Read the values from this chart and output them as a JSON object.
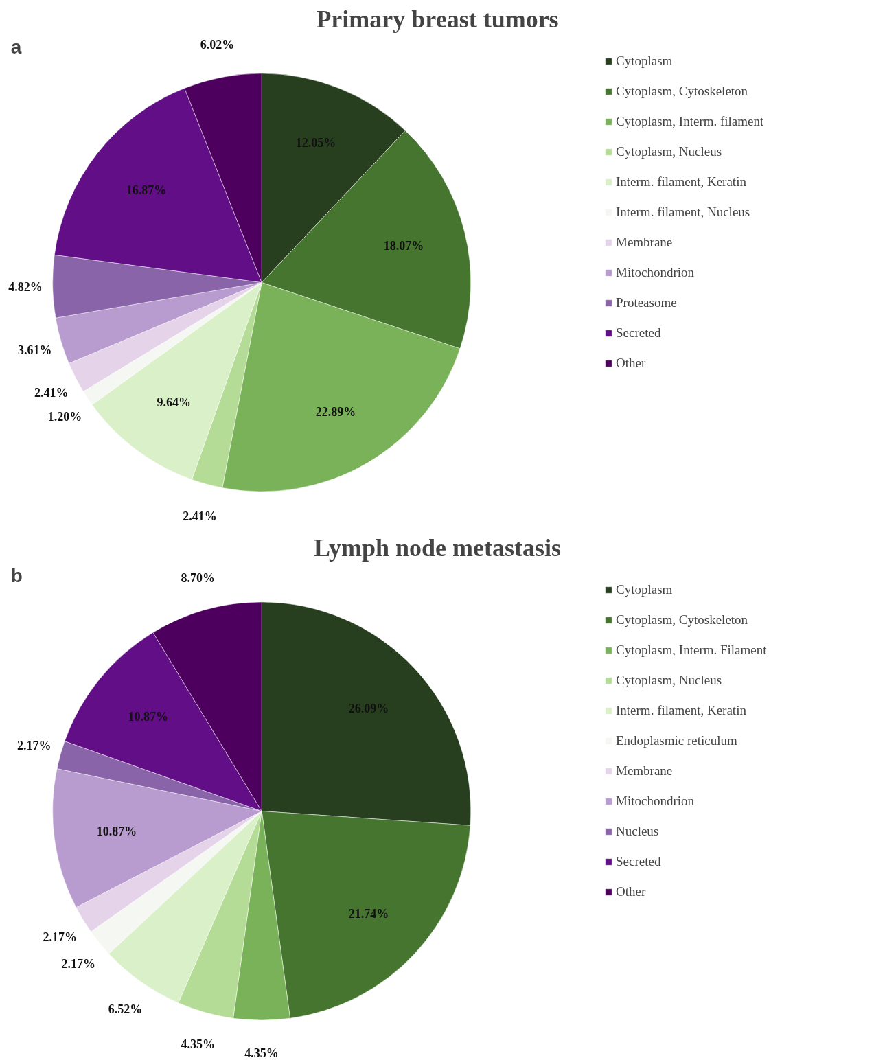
{
  "chart_data": [
    {
      "type": "pie",
      "title": "Primary breast tumors",
      "annotations": [
        "a"
      ],
      "legend": "right",
      "categories": [
        "Cytoplasm",
        "Cytoplasm, Cytoskeleton",
        "Cytoplasm, Interm. filament",
        "Cytoplasm, Nucleus",
        "Interm. filament, Keratin",
        "Interm. filament, Nucleus",
        "Membrane",
        "Mitochondrion",
        "Proteasome",
        "Secreted",
        "Other"
      ],
      "values": [
        12.05,
        18.07,
        22.89,
        2.41,
        9.64,
        1.2,
        2.41,
        3.61,
        4.82,
        16.87,
        6.02
      ],
      "value_labels": [
        "12.05%",
        "18.07%",
        "22.89%",
        "2.41%",
        "9.64%",
        "1.20%",
        "2.41%",
        "3.61%",
        "4.82%",
        "16.87%",
        "6.02%"
      ],
      "colors": [
        "#283f1f",
        "#467530",
        "#7ab25a",
        "#b5dc96",
        "#daf0c9",
        "#f5f7f2",
        "#e5d3ea",
        "#b89bcf",
        "#8a64a8",
        "#620e86",
        "#4d005e"
      ]
    },
    {
      "type": "pie",
      "title": "Lymph node metastasis",
      "annotations": [
        "b"
      ],
      "legend": "right",
      "categories": [
        "Cytoplasm",
        "Cytoplasm, Cytoskeleton",
        "Cytoplasm, Interm. Filament",
        "Cytoplasm, Nucleus",
        "Interm. filament, Keratin",
        "Endoplasmic reticulum",
        "Membrane",
        "Mitochondrion",
        "Nucleus",
        "Secreted",
        "Other"
      ],
      "values": [
        26.09,
        21.74,
        4.35,
        4.35,
        6.52,
        2.17,
        2.17,
        10.87,
        2.17,
        10.87,
        8.7
      ],
      "value_labels": [
        "26.09%",
        "21.74%",
        "4.35%",
        "4.35%",
        "6.52%",
        "2.17%",
        "2.17%",
        "10.87%",
        "2.17%",
        "10.87%",
        "8.70%"
      ],
      "colors": [
        "#283f1f",
        "#467530",
        "#7ab25a",
        "#b5dc96",
        "#daf0c9",
        "#f5f7f2",
        "#e5d3ea",
        "#b89bcf",
        "#8a64a8",
        "#620e86",
        "#4d005e"
      ]
    }
  ]
}
